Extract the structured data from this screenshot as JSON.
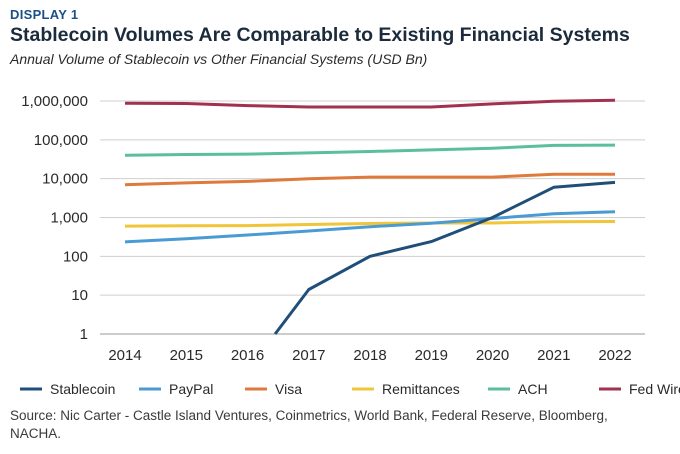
{
  "header": {
    "eyebrow": "DISPLAY 1",
    "title": "Stablecoin Volumes Are Comparable to Existing Financial Systems",
    "subtitle": "Annual Volume of Stablecoin vs Other Financial Systems (USD Bn)"
  },
  "source": "Source: Nic Carter - Castle Island Ventures, Coinmetrics, World Bank, Federal Reserve, Bloomberg, NACHA.",
  "chart_data": {
    "type": "line",
    "scale": "log",
    "title": "Stablecoin Volumes Are Comparable to Existing Financial Systems",
    "subtitle": "Annual Volume of Stablecoin vs Other Financial Systems (USD Bn)",
    "xlabel": "",
    "ylabel": "",
    "ylim": [
      1,
      1000000
    ],
    "grid": true,
    "legend_position": "bottom",
    "x": [
      2014,
      2015,
      2016,
      2017,
      2018,
      2019,
      2020,
      2021,
      2022
    ],
    "x_tick_labels": [
      "2014",
      "2015",
      "2016",
      "2017",
      "2018",
      "2019",
      "2020",
      "2021",
      "2022"
    ],
    "y_ticks": [
      1,
      10,
      100,
      1000,
      10000,
      100000,
      1000000
    ],
    "y_tick_labels": [
      "1",
      "10",
      "100",
      "1,000",
      "10,000",
      "100,000",
      "1,000,000"
    ],
    "series": [
      {
        "name": "Stablecoin",
        "color": "#1f4e79",
        "x": [
          2016.45,
          2017,
          2018,
          2019,
          2020,
          2021,
          2022
        ],
        "values": [
          1,
          14,
          100,
          240,
          1000,
          6000,
          8000
        ]
      },
      {
        "name": "PayPal",
        "color": "#4a9bd4",
        "x": [
          2014,
          2015,
          2016,
          2017,
          2018,
          2019,
          2020,
          2021,
          2022
        ],
        "values": [
          235,
          285,
          355,
          450,
          580,
          710,
          940,
          1250,
          1400
        ]
      },
      {
        "name": "Visa",
        "color": "#e07a3c",
        "x": [
          2014,
          2015,
          2016,
          2017,
          2018,
          2019,
          2020,
          2021,
          2022
        ],
        "values": [
          7000,
          7800,
          8500,
          10000,
          11000,
          11000,
          11000,
          13000,
          13000
        ]
      },
      {
        "name": "Remittances",
        "color": "#f0c53a",
        "x": [
          2014,
          2015,
          2016,
          2017,
          2018,
          2019,
          2020,
          2021,
          2022
        ],
        "values": [
          600,
          610,
          620,
          660,
          700,
          720,
          720,
          780,
          790
        ]
      },
      {
        "name": "ACH",
        "color": "#5bbf9c",
        "x": [
          2014,
          2015,
          2016,
          2017,
          2018,
          2019,
          2020,
          2021,
          2022
        ],
        "values": [
          40000,
          42000,
          43000,
          46000,
          50000,
          55000,
          61000,
          72000,
          73000
        ]
      },
      {
        "name": "Fed Wire",
        "color": "#a2304f",
        "x": [
          2014,
          2015,
          2016,
          2017,
          2018,
          2019,
          2020,
          2021,
          2022
        ],
        "values": [
          880000,
          860000,
          760000,
          700000,
          700000,
          700000,
          840000,
          990000,
          1050000
        ]
      }
    ]
  }
}
